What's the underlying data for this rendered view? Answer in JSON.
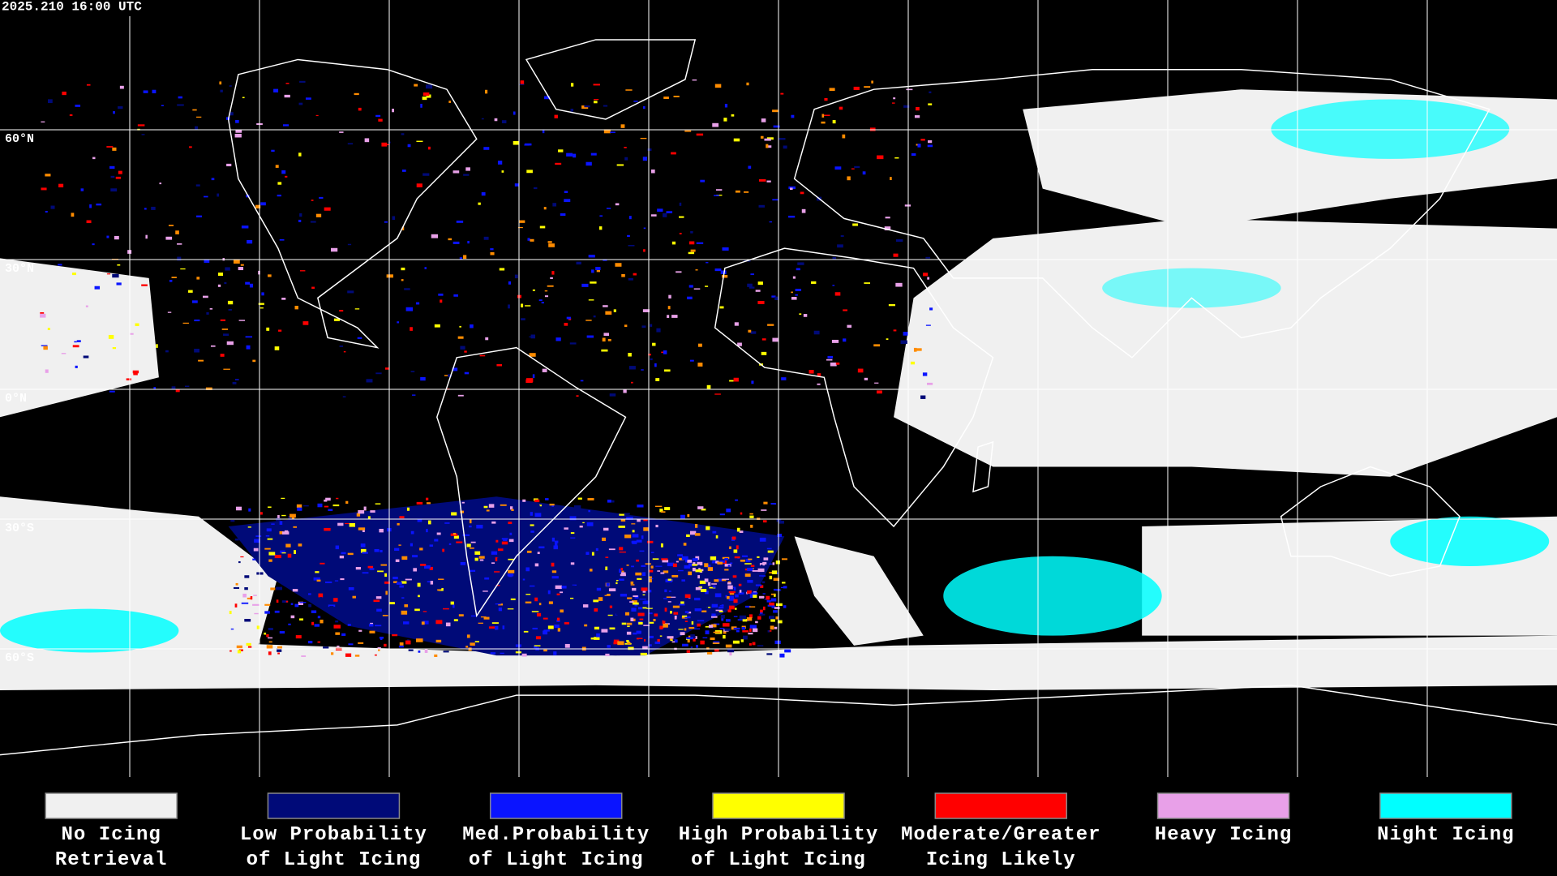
{
  "header": {
    "timestamp": "2025.210 16:00 UTC"
  },
  "map": {
    "lat_labels": [
      "60°N",
      "30°N",
      "0°N",
      "30°S",
      "60°S"
    ]
  },
  "legend": {
    "items": [
      {
        "lines": [
          "No Icing",
          "Retrieval"
        ],
        "color": "#f0f0f0"
      },
      {
        "lines": [
          "Low Probability",
          "of Light Icing"
        ],
        "color": "#000a78"
      },
      {
        "lines": [
          "Med.Probability",
          "of Light Icing"
        ],
        "color": "#0a14ff"
      },
      {
        "lines": [
          "High Probability",
          "of Light Icing"
        ],
        "color": "#ffff00"
      },
      {
        "lines": [
          "Moderate/Greater",
          "Icing Likely"
        ],
        "color": "#ff0000"
      },
      {
        "lines": [
          "Heavy Icing"
        ],
        "color": "#e8a0e8"
      },
      {
        "lines": [
          "Night Icing"
        ],
        "color": "#00ffff"
      }
    ]
  }
}
